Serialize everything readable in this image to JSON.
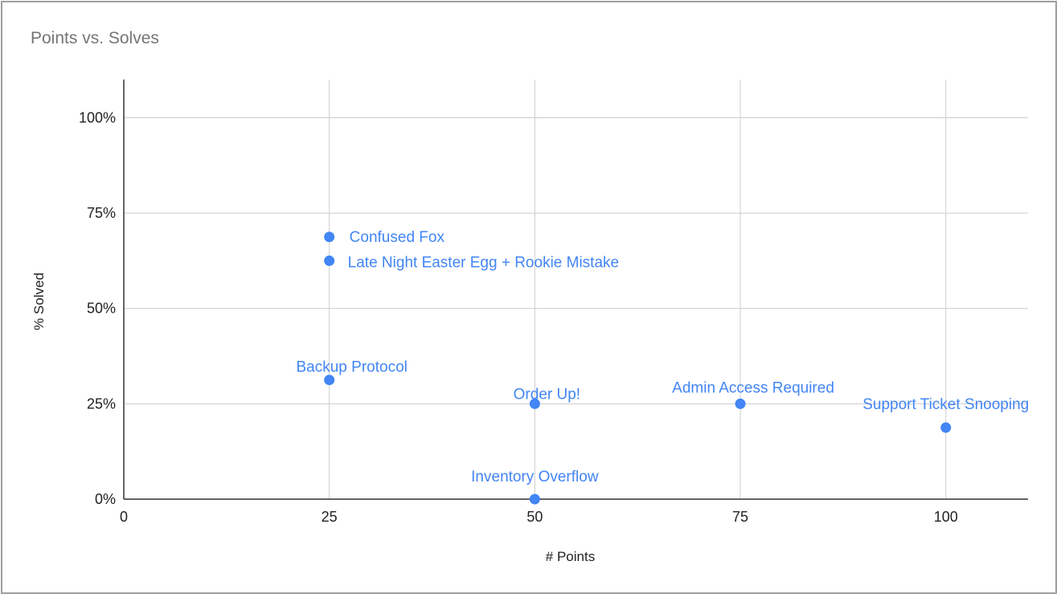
{
  "chart_data": {
    "type": "scatter",
    "title": "Points vs. Solves",
    "xlabel": "# Points",
    "ylabel": "% Solved",
    "xlim": [
      0,
      110
    ],
    "ylim": [
      0,
      110
    ],
    "x_ticks": [
      0,
      25,
      50,
      75,
      100
    ],
    "x_tick_labels": [
      "0",
      "25",
      "50",
      "75",
      "100"
    ],
    "y_ticks": [
      0,
      25,
      50,
      75,
      100
    ],
    "y_tick_labels": [
      "0%",
      "25%",
      "50%",
      "75%",
      "100%"
    ],
    "grid": true,
    "legend": "none",
    "point_color": "#4285f4",
    "points": [
      {
        "x": 25,
        "y": 68.75,
        "label": "Confused Fox"
      },
      {
        "x": 25,
        "y": 62.5,
        "label": "Late Night Easter Egg + Rookie Mistake"
      },
      {
        "x": 25,
        "y": 31.25,
        "label": "Backup Protocol"
      },
      {
        "x": 50,
        "y": 25,
        "label": "Order Up!"
      },
      {
        "x": 50,
        "y": 0,
        "label": "Inventory Overflow"
      },
      {
        "x": 75,
        "y": 25,
        "label": "Admin Access Required"
      },
      {
        "x": 100,
        "y": 18.75,
        "label": "Support Ticket Snooping"
      }
    ]
  }
}
